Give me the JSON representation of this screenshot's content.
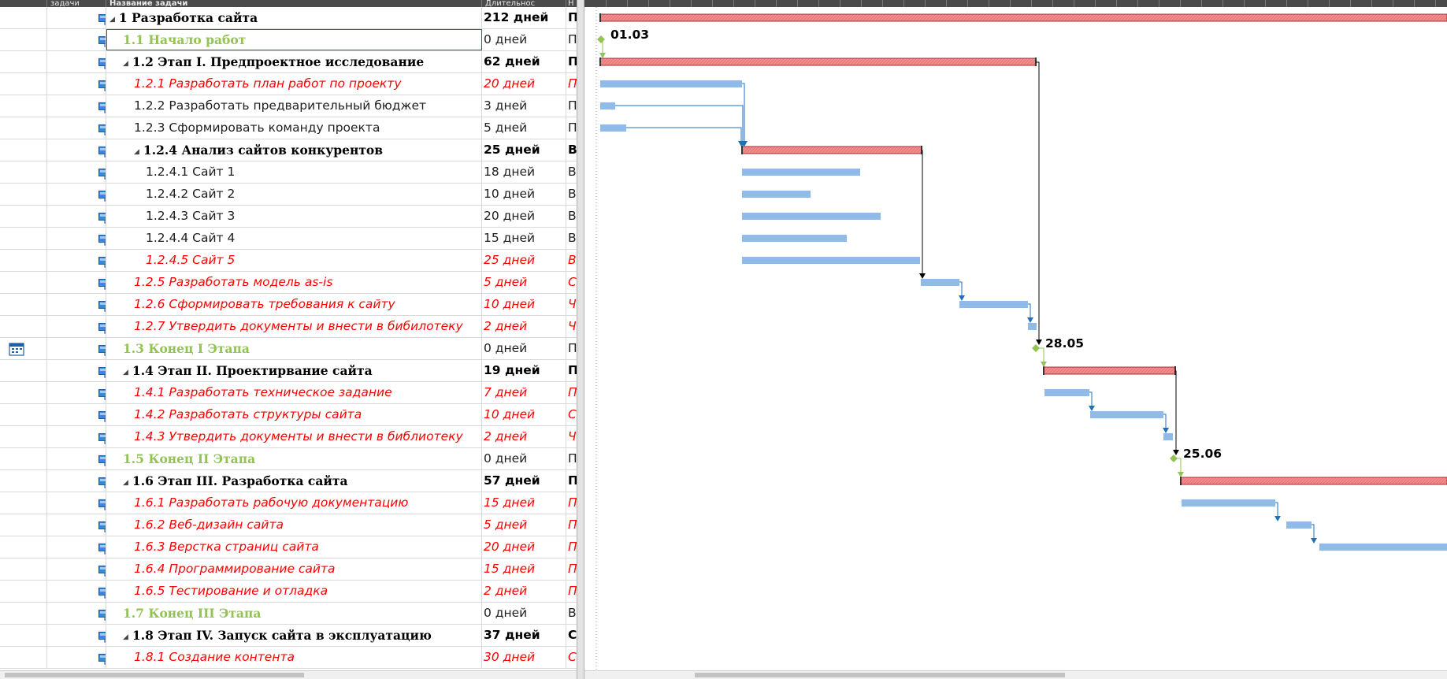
{
  "columns": {
    "mode": "задачи",
    "name": "Название задачи",
    "duration": "Длительнос",
    "start": "Н"
  },
  "tasks": [
    {
      "name": "1 Разработка сайта",
      "duration": "212 дней",
      "start": "Пн",
      "kind": "summary",
      "level": 0,
      "collapse": true
    },
    {
      "name": "1.1 Начало работ",
      "duration": "0 дней",
      "start": "Пн",
      "kind": "milestone",
      "level": 1,
      "collapse": false,
      "selected": true
    },
    {
      "name": "1.2 Этап I. Предпроектное исследование",
      "duration": "62 дней",
      "start": "Пн",
      "kind": "summary",
      "level": 1,
      "collapse": true
    },
    {
      "name": "1.2.1 Разработать план работ по проекту",
      "duration": "20 дней",
      "start": "Пн",
      "kind": "critical",
      "level": 2,
      "collapse": false
    },
    {
      "name": "1.2.2 Разработать предварительный бюджет",
      "duration": "3 дней",
      "start": "Пн",
      "kind": "normal",
      "level": 2,
      "collapse": false
    },
    {
      "name": "1.2.3 Сформировать команду проекта",
      "duration": "5 дней",
      "start": "Пн",
      "kind": "normal",
      "level": 2,
      "collapse": false
    },
    {
      "name": "1.2.4 Анализ сайтов конкурентов",
      "duration": "25 дней",
      "start": "Вт",
      "kind": "summary",
      "level": 2,
      "collapse": true
    },
    {
      "name": "1.2.4.1 Сайт 1",
      "duration": "18 дней",
      "start": "Вт",
      "kind": "normal",
      "level": 3,
      "collapse": false
    },
    {
      "name": "1.2.4.2 Сайт 2",
      "duration": "10 дней",
      "start": "Вт",
      "kind": "normal",
      "level": 3,
      "collapse": false
    },
    {
      "name": "1.2.4.3 Сайт 3",
      "duration": "20 дней",
      "start": "Вт",
      "kind": "normal",
      "level": 3,
      "collapse": false
    },
    {
      "name": "1.2.4.4 Сайт 4",
      "duration": "15 дней",
      "start": "Вт",
      "kind": "normal",
      "level": 3,
      "collapse": false
    },
    {
      "name": "1.2.4.5 Сайт 5",
      "duration": "25 дней",
      "start": "Вт",
      "kind": "critical",
      "level": 3,
      "collapse": false
    },
    {
      "name": "1.2.5 Разработать модель as-is",
      "duration": "5 дней",
      "start": "Ср",
      "kind": "critical",
      "level": 2,
      "collapse": false
    },
    {
      "name": "1.2.6 Сформировать требования к сайту",
      "duration": "10 дней",
      "start": "Чт",
      "kind": "critical",
      "level": 2,
      "collapse": false
    },
    {
      "name": "1.2.7 Утвердить документы и внести в бибилотеку",
      "duration": "2 дней",
      "start": "Чт",
      "kind": "critical",
      "level": 2,
      "collapse": false
    },
    {
      "name": "1.3 Конец I Этапа",
      "duration": "0 дней",
      "start": "Пт",
      "kind": "milestone",
      "level": 1,
      "collapse": false,
      "calendar": true
    },
    {
      "name": "1.4 Этап II. Проектирвание сайта",
      "duration": "19 дней",
      "start": "Пн",
      "kind": "summary",
      "level": 1,
      "collapse": true
    },
    {
      "name": "1.4.1 Разработать техническое задание",
      "duration": "7 дней",
      "start": "Пн",
      "kind": "critical",
      "level": 2,
      "collapse": false
    },
    {
      "name": "1.4.2 Разработать структуры сайта",
      "duration": "10 дней",
      "start": "Ср",
      "kind": "critical",
      "level": 2,
      "collapse": false
    },
    {
      "name": "1.4.3 Утвердить документы и внести в библиотеку",
      "duration": "2 дней",
      "start": "Чт",
      "kind": "critical",
      "level": 2,
      "collapse": false
    },
    {
      "name": "1.5 Конец II Этапа",
      "duration": "0 дней",
      "start": "Пт",
      "kind": "milestone",
      "level": 1,
      "collapse": false
    },
    {
      "name": "1.6 Этап III. Разработка сайта",
      "duration": "57 дней",
      "start": "Пн",
      "kind": "summary",
      "level": 1,
      "collapse": true
    },
    {
      "name": "1.6.1 Разработать рабочую документацию",
      "duration": "15 дней",
      "start": "Пн",
      "kind": "critical",
      "level": 2,
      "collapse": false
    },
    {
      "name": "1.6.2 Веб-дизайн сайта",
      "duration": "5 дней",
      "start": "Пн",
      "kind": "critical",
      "level": 2,
      "collapse": false
    },
    {
      "name": "1.6.3 Верстка страниц сайта",
      "duration": "20 дней",
      "start": "Пн",
      "kind": "critical",
      "level": 2,
      "collapse": false
    },
    {
      "name": "1.6.4 Программирование сайта",
      "duration": "15 дней",
      "start": "Пн",
      "kind": "critical",
      "level": 2,
      "collapse": false
    },
    {
      "name": "1.6.5 Тестирование и отладка",
      "duration": "2 дней",
      "start": "Пн",
      "kind": "critical",
      "level": 2,
      "collapse": false
    },
    {
      "name": "1.7 Конец III Этапа",
      "duration": "0 дней",
      "start": "Вт",
      "kind": "milestone",
      "level": 1,
      "collapse": false
    },
    {
      "name": "1.8 Этап IV. Запуск сайта в эксплуатацию",
      "duration": "37 дней",
      "start": "Ср",
      "kind": "summary",
      "level": 1,
      "collapse": true
    },
    {
      "name": "1.8.1 Создание контента",
      "duration": "30 дней",
      "start": "Ср",
      "kind": "critical",
      "level": 2,
      "collapse": false
    }
  ],
  "gantt": {
    "milestone_labels": [
      "01.03",
      "28.05",
      "25.06"
    ],
    "colors": {
      "summary_bar": "#f28b8b",
      "summary_border": "#c0392b",
      "task_bar": "#8fbbe8",
      "link": "#1f6fbf",
      "summary_link": "#000000",
      "milestone": "#92c353",
      "critical_text": "#ff0000",
      "milestone_text": "#92c353"
    }
  }
}
